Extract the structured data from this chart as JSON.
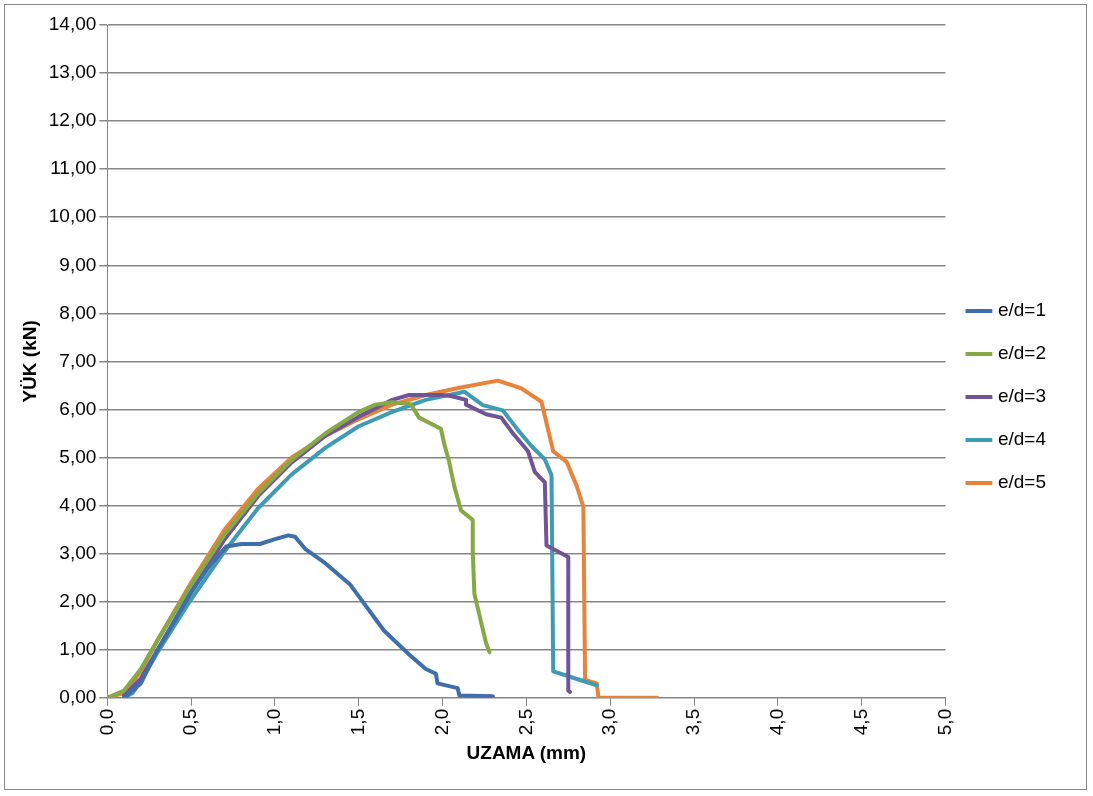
{
  "chart_data": {
    "type": "line",
    "xlabel": "UZAMA (mm)",
    "ylabel": "YÜK (kN)",
    "legend": "right",
    "grid": "y",
    "marker": "none",
    "line_style": "solid",
    "xlim": [
      0,
      5
    ],
    "ylim": [
      0,
      14
    ],
    "xticks": [
      {
        "value": 0,
        "label": "0,0"
      },
      {
        "value": 0.5,
        "label": "0,5"
      },
      {
        "value": 1,
        "label": "1,0"
      },
      {
        "value": 1.5,
        "label": "1,5"
      },
      {
        "value": 2,
        "label": "2,0"
      },
      {
        "value": 2.5,
        "label": "2,5"
      },
      {
        "value": 3,
        "label": "3,0"
      },
      {
        "value": 3.5,
        "label": "3,5"
      },
      {
        "value": 4,
        "label": "4,0"
      },
      {
        "value": 4.5,
        "label": "4,5"
      },
      {
        "value": 5,
        "label": "5,0"
      }
    ],
    "yticks": [
      {
        "value": 0,
        "label": "0,00"
      },
      {
        "value": 1,
        "label": "1,00"
      },
      {
        "value": 2,
        "label": "2,00"
      },
      {
        "value": 3,
        "label": "3,00"
      },
      {
        "value": 4,
        "label": "4,00"
      },
      {
        "value": 5,
        "label": "5,00"
      },
      {
        "value": 6,
        "label": "6,00"
      },
      {
        "value": 7,
        "label": "7,00"
      },
      {
        "value": 8,
        "label": "8,00"
      },
      {
        "value": 9,
        "label": "9,00"
      },
      {
        "value": 10,
        "label": "10,00"
      },
      {
        "value": 11,
        "label": "11,00"
      },
      {
        "value": 12,
        "label": "12,00"
      },
      {
        "value": 13,
        "label": "13,00"
      },
      {
        "value": 14,
        "label": "14,00"
      }
    ],
    "series": [
      {
        "name": "e/d=1",
        "color": "#3f6faa",
        "x": [
          0.1,
          0.2,
          0.3,
          0.4,
          0.5,
          0.6,
          0.71,
          0.8,
          0.91,
          1.0,
          1.08,
          1.12,
          1.18,
          1.3,
          1.45,
          1.65,
          1.8,
          1.9,
          1.96,
          1.97,
          2.09,
          2.1,
          2.3
        ],
        "values": [
          0,
          0.3,
          1.0,
          1.6,
          2.2,
          2.7,
          3.15,
          3.2,
          3.2,
          3.3,
          3.38,
          3.35,
          3.1,
          2.8,
          2.35,
          1.4,
          0.9,
          0.6,
          0.5,
          0.3,
          0.2,
          0.05,
          0.03
        ]
      },
      {
        "name": "e/d=2",
        "color": "#86a845",
        "x": [
          0,
          0.1,
          0.2,
          0.3,
          0.5,
          0.7,
          0.9,
          1.1,
          1.3,
          1.5,
          1.6,
          1.7,
          1.81,
          1.86,
          1.99,
          2.01,
          2.04,
          2.07,
          2.11,
          2.18,
          2.18,
          2.19,
          2.23,
          2.26,
          2.28
        ],
        "values": [
          0,
          0.15,
          0.6,
          1.2,
          2.35,
          3.4,
          4.25,
          4.95,
          5.5,
          5.95,
          6.1,
          6.15,
          6.11,
          5.83,
          5.6,
          5.28,
          4.9,
          4.4,
          3.9,
          3.7,
          3.03,
          2.16,
          1.57,
          1.13,
          0.95
        ]
      },
      {
        "name": "e/d=3",
        "color": "#6f5496",
        "x": [
          0.1,
          0.2,
          0.3,
          0.5,
          0.7,
          0.9,
          1.1,
          1.3,
          1.5,
          1.7,
          1.8,
          2.0,
          2.05,
          2.14,
          2.14,
          2.26,
          2.35,
          2.42,
          2.51,
          2.55,
          2.61,
          2.62,
          2.75,
          2.75,
          2.76
        ],
        "values": [
          0.05,
          0.4,
          1.0,
          2.2,
          3.3,
          4.2,
          4.9,
          5.45,
          5.85,
          6.2,
          6.3,
          6.3,
          6.28,
          6.2,
          6.1,
          5.9,
          5.83,
          5.5,
          5.13,
          4.7,
          4.48,
          3.17,
          2.93,
          0.15,
          0.12
        ]
      },
      {
        "name": "e/d=4",
        "color": "#3f9bb3",
        "x": [
          0.1,
          0.15,
          0.2,
          0.3,
          0.5,
          0.7,
          0.9,
          1.1,
          1.3,
          1.5,
          1.7,
          1.9,
          2.13,
          2.24,
          2.36,
          2.45,
          2.53,
          2.61,
          2.65,
          2.66,
          2.82,
          2.92
        ],
        "values": [
          0,
          0.1,
          0.35,
          0.95,
          2.05,
          3.05,
          3.95,
          4.65,
          5.2,
          5.65,
          5.95,
          6.2,
          6.37,
          6.09,
          5.98,
          5.57,
          5.24,
          4.96,
          4.63,
          0.55,
          0.37,
          0.26
        ]
      },
      {
        "name": "e/d=5",
        "color": "#e8833a",
        "x": [
          0,
          0.1,
          0.2,
          0.3,
          0.5,
          0.7,
          0.9,
          1.1,
          1.3,
          1.5,
          1.7,
          1.9,
          2.1,
          2.33,
          2.47,
          2.59,
          2.66,
          2.74,
          2.8,
          2.84,
          2.85,
          2.92,
          2.93,
          3.28
        ],
        "values": [
          0,
          0.1,
          0.55,
          1.2,
          2.4,
          3.5,
          4.35,
          5.0,
          5.45,
          5.8,
          6.1,
          6.3,
          6.45,
          6.6,
          6.44,
          6.16,
          5.13,
          4.91,
          4.41,
          3.97,
          0.37,
          0.3,
          0,
          0
        ]
      }
    ]
  }
}
